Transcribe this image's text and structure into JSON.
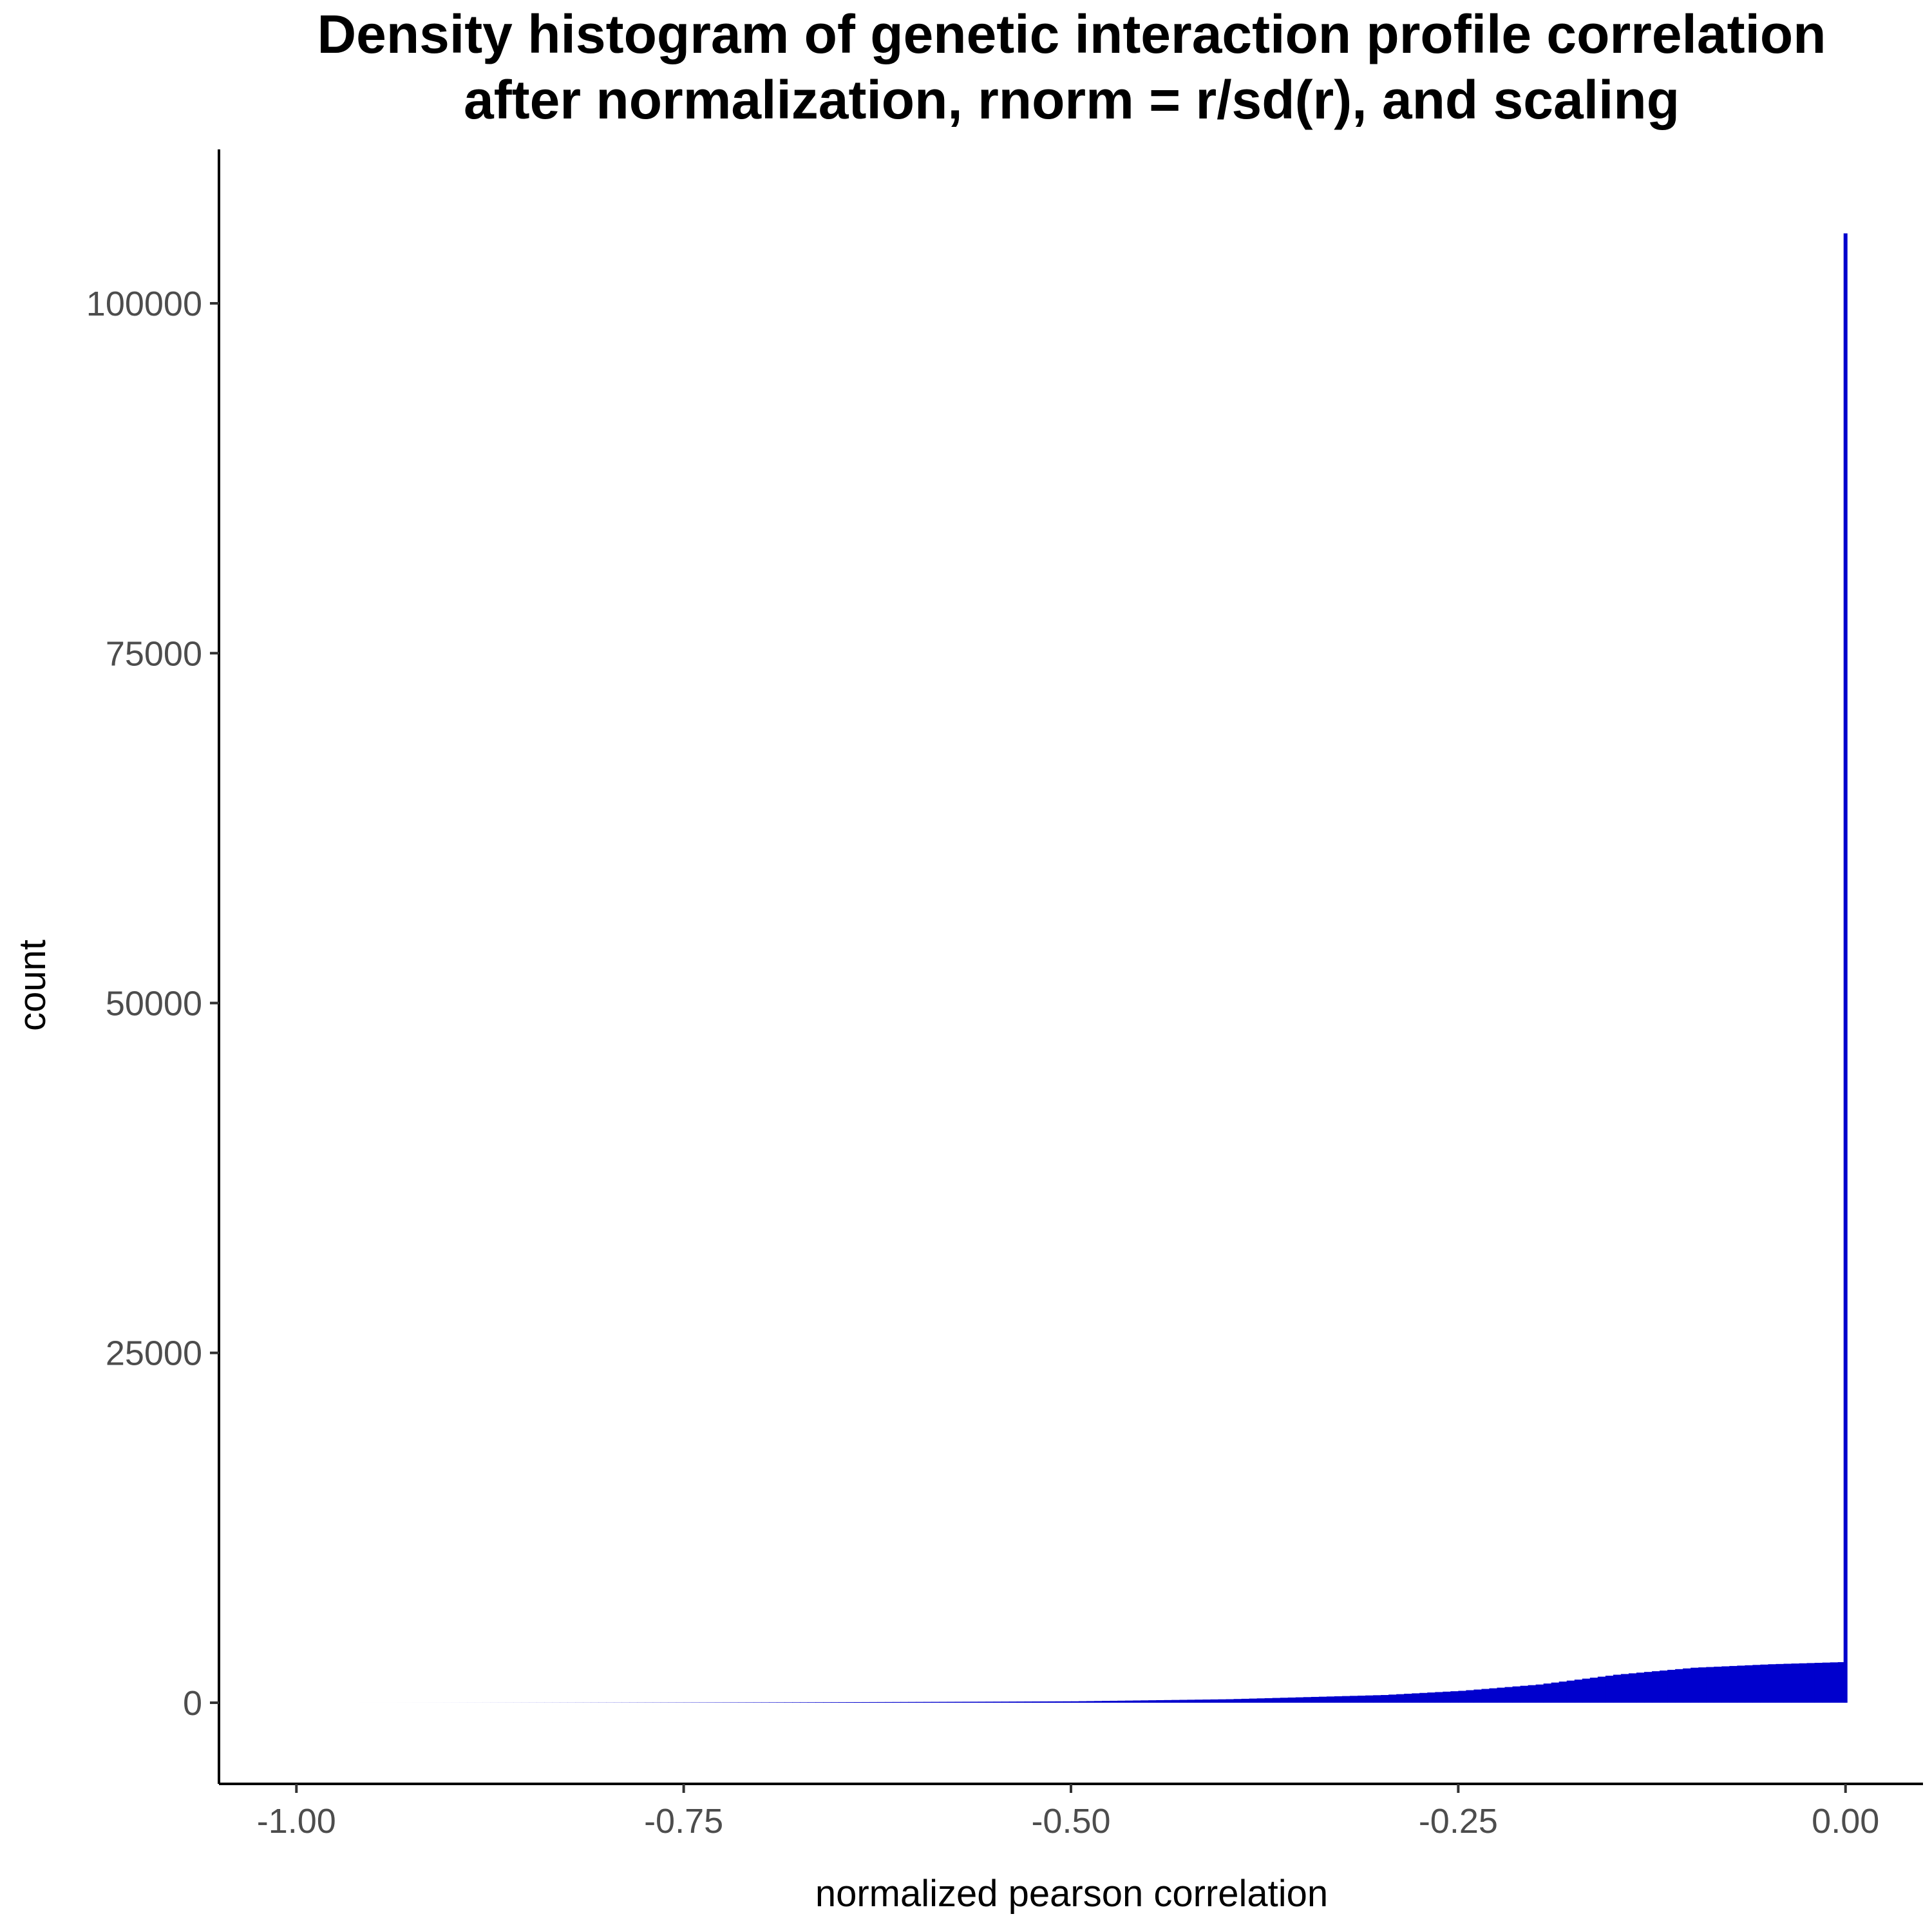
{
  "chart_data": {
    "type": "bar",
    "title": "Density histogram of genetic interaction profile correlation",
    "subtitle": "after normalization, rnorm = r/sd(r), and scaling",
    "xlabel": "normalized pearson correlation",
    "ylabel": "count",
    "xlim": [
      -1.05,
      0.05
    ],
    "ylim": [
      -5800,
      111000
    ],
    "x_ticks": [
      "-1.00",
      "-0.75",
      "-0.50",
      "-0.25",
      "0.00"
    ],
    "x_tick_values": [
      -1.0,
      -0.75,
      -0.5,
      -0.25,
      0.0
    ],
    "y_ticks": [
      "0",
      "25000",
      "50000",
      "75000",
      "100000"
    ],
    "y_tick_values": [
      0,
      25000,
      50000,
      75000,
      100000
    ],
    "grid": false,
    "bar_color": "#0000CD",
    "bin_width": 0.005,
    "x": [
      -0.5,
      -0.4,
      -0.3,
      -0.25,
      -0.2,
      -0.15,
      -0.1,
      -0.05,
      -0.005,
      0.0
    ],
    "values": [
      100,
      250,
      550,
      850,
      1300,
      2000,
      2500,
      2750,
      2900,
      105000
    ]
  }
}
